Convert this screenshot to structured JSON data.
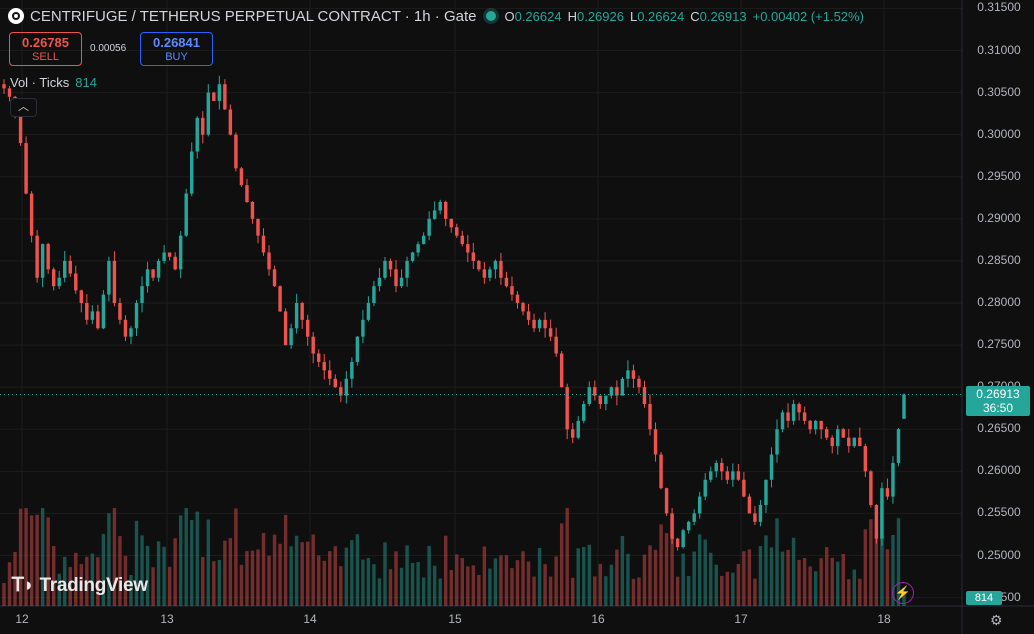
{
  "header": {
    "title": "CENTRIFUGE / TETHERUS PERPETUAL CONTRACT · 1h · Gate",
    "ohlc": {
      "o_label": "O",
      "o": "0.26624",
      "h_label": "H",
      "h": "0.26926",
      "l_label": "L",
      "l": "0.26624",
      "c_label": "C",
      "c": "0.26913",
      "change": "+0.00402 (+1.52%)"
    }
  },
  "trade": {
    "sell_price": "0.26785",
    "sell_label": "SELL",
    "spread": "0.00056",
    "buy_price": "0.26841",
    "buy_label": "BUY"
  },
  "volume": {
    "label": "Vol · Ticks",
    "value": "814"
  },
  "collapse_icon": "chevron-up-icon",
  "last_price": {
    "price": "0.26913",
    "countdown": "36:50"
  },
  "brand": "TradingView",
  "colors": {
    "up": "#26a69a",
    "down": "#ef5350",
    "background": "#0f0f0f",
    "grid": "#1c1c1c"
  },
  "chart_data": {
    "type": "candlestick",
    "symbol": "CENTRIFUGE / TETHERUS PERPETUAL CONTRACT",
    "interval": "1h",
    "exchange": "Gate",
    "y_ticks": [
      "0.31500",
      "0.31000",
      "0.30500",
      "0.30000",
      "0.29500",
      "0.29000",
      "0.28500",
      "0.28000",
      "0.27500",
      "0.27000",
      "0.26500",
      "0.26000",
      "0.25500",
      "0.25000",
      "0.24500"
    ],
    "ylim": [
      0.244,
      0.316
    ],
    "x_ticks": [
      "12",
      "13",
      "14",
      "15",
      "16",
      "17",
      "18"
    ],
    "start_price": 0.306,
    "closes": [
      0.3055,
      0.3045,
      0.303,
      0.299,
      0.293,
      0.288,
      0.283,
      0.287,
      0.284,
      0.282,
      0.283,
      0.285,
      0.2835,
      0.2815,
      0.28,
      0.278,
      0.279,
      0.277,
      0.281,
      0.285,
      0.28,
      0.278,
      0.276,
      0.277,
      0.28,
      0.282,
      0.284,
      0.283,
      0.285,
      0.286,
      0.2855,
      0.284,
      0.288,
      0.293,
      0.298,
      0.302,
      0.3,
      0.305,
      0.304,
      0.306,
      0.303,
      0.3,
      0.296,
      0.294,
      0.292,
      0.29,
      0.288,
      0.286,
      0.284,
      0.282,
      0.279,
      0.275,
      0.277,
      0.28,
      0.278,
      0.276,
      0.274,
      0.273,
      0.272,
      0.271,
      0.27,
      0.269,
      0.271,
      0.273,
      0.276,
      0.278,
      0.28,
      0.282,
      0.283,
      0.285,
      0.284,
      0.282,
      0.283,
      0.285,
      0.286,
      0.287,
      0.288,
      0.29,
      0.291,
      0.292,
      0.29,
      0.289,
      0.288,
      0.287,
      0.286,
      0.285,
      0.284,
      0.283,
      0.284,
      0.285,
      0.283,
      0.282,
      0.281,
      0.28,
      0.279,
      0.278,
      0.277,
      0.278,
      0.277,
      0.276,
      0.274,
      0.27,
      0.265,
      0.264,
      0.266,
      0.268,
      0.27,
      0.269,
      0.268,
      0.269,
      0.27,
      0.269,
      0.271,
      0.272,
      0.271,
      0.27,
      0.268,
      0.265,
      0.262,
      0.258,
      0.255,
      0.252,
      0.251,
      0.253,
      0.254,
      0.255,
      0.257,
      0.259,
      0.26,
      0.261,
      0.26,
      0.259,
      0.26,
      0.259,
      0.257,
      0.255,
      0.254,
      0.256,
      0.259,
      0.262,
      0.265,
      0.267,
      0.266,
      0.268,
      0.267,
      0.266,
      0.265,
      0.266,
      0.265,
      0.264,
      0.263,
      0.265,
      0.264,
      0.263,
      0.264,
      0.263,
      0.26,
      0.256,
      0.252,
      0.258,
      0.257,
      0.261,
      0.265,
      0.2691
    ],
    "last": {
      "open": 0.26624,
      "high": 0.26926,
      "low": 0.26624,
      "close": 0.26913
    },
    "volume_max": 814
  }
}
